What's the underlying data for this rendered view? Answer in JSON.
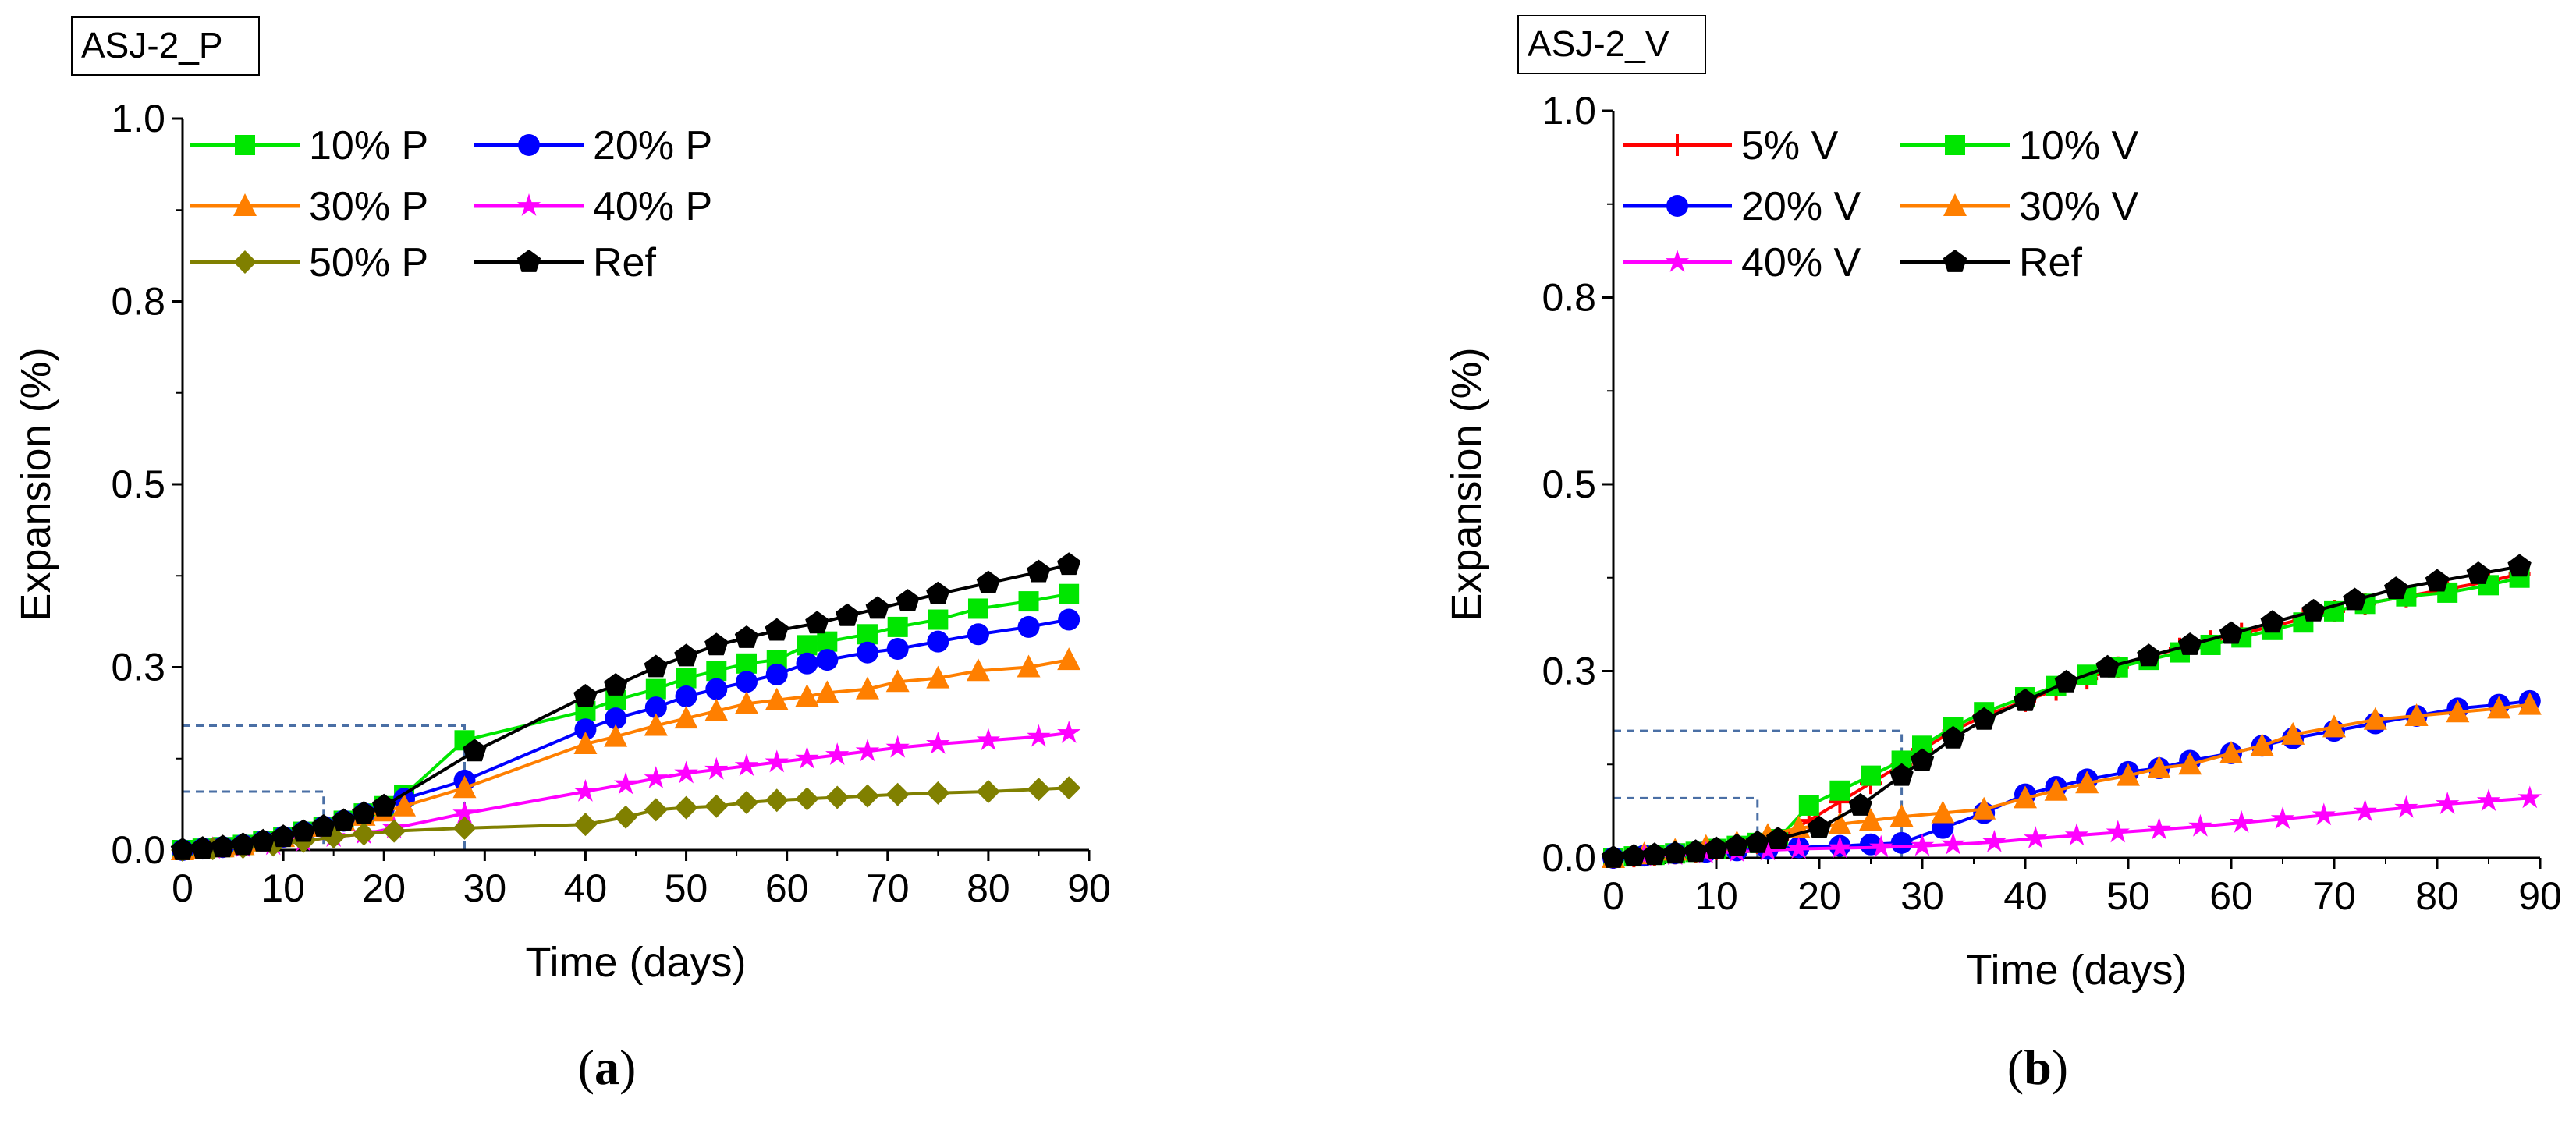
{
  "chart_data": [
    {
      "type": "line",
      "title": "ASJ-2_P",
      "caption": "(a)",
      "caption_letter": "a",
      "xlabel": "Time (days)",
      "ylabel": "Expansion (%)",
      "xlim": [
        0,
        90
      ],
      "ylim": [
        0,
        1.0
      ],
      "xticks": [
        0,
        10,
        20,
        30,
        40,
        50,
        60,
        70,
        80,
        90
      ],
      "yticks": [
        {
          "value": 0.0,
          "label": "0.0"
        },
        {
          "value": 0.25,
          "label": "0.3"
        },
        {
          "value": 0.5,
          "label": "0.5"
        },
        {
          "value": 0.75,
          "label": "0.8"
        },
        {
          "value": 1.0,
          "label": "1.0"
        }
      ],
      "inset_boxes": [
        {
          "x": [
            0,
            28
          ],
          "y": [
            0,
            0.17
          ]
        },
        {
          "x": [
            0,
            14
          ],
          "y": [
            0,
            0.08
          ]
        }
      ],
      "series": [
        {
          "name": "10% P",
          "color": "#00e600",
          "marker": "square",
          "x": [
            0,
            2,
            4,
            6,
            8,
            10,
            12,
            14,
            16,
            18,
            20,
            22,
            28,
            40,
            43,
            47,
            50,
            53,
            56,
            59,
            62,
            64,
            68,
            71,
            75,
            79,
            84,
            88
          ],
          "y": [
            0,
            0.002,
            0.004,
            0.007,
            0.012,
            0.018,
            0.025,
            0.032,
            0.04,
            0.05,
            0.06,
            0.075,
            0.15,
            0.19,
            0.205,
            0.22,
            0.235,
            0.245,
            0.255,
            0.26,
            0.28,
            0.285,
            0.295,
            0.305,
            0.315,
            0.33,
            0.34,
            0.35
          ]
        },
        {
          "name": "20% P",
          "color": "#0000ff",
          "marker": "circle",
          "x": [
            0,
            2,
            4,
            6,
            8,
            10,
            12,
            14,
            16,
            18,
            20,
            22,
            28,
            40,
            43,
            47,
            50,
            53,
            56,
            59,
            62,
            64,
            68,
            71,
            75,
            79,
            84,
            88
          ],
          "y": [
            0,
            0.002,
            0.004,
            0.007,
            0.012,
            0.018,
            0.025,
            0.032,
            0.04,
            0.05,
            0.058,
            0.07,
            0.095,
            0.165,
            0.18,
            0.195,
            0.21,
            0.22,
            0.23,
            0.24,
            0.255,
            0.26,
            0.27,
            0.275,
            0.285,
            0.295,
            0.305,
            0.315
          ]
        },
        {
          "name": "30% P",
          "color": "#ff7f00",
          "marker": "triangle",
          "x": [
            0,
            2,
            4,
            6,
            8,
            10,
            12,
            14,
            16,
            18,
            20,
            22,
            28,
            40,
            43,
            47,
            50,
            53,
            56,
            59,
            62,
            64,
            68,
            71,
            75,
            79,
            84,
            88
          ],
          "y": [
            0,
            0.002,
            0.004,
            0.007,
            0.012,
            0.018,
            0.025,
            0.032,
            0.04,
            0.047,
            0.053,
            0.06,
            0.085,
            0.145,
            0.155,
            0.17,
            0.18,
            0.19,
            0.2,
            0.205,
            0.21,
            0.215,
            0.22,
            0.23,
            0.235,
            0.245,
            0.25,
            0.26
          ]
        },
        {
          "name": "40% P",
          "color": "#ff00ff",
          "marker": "star",
          "x": [
            0,
            3,
            6,
            9,
            12,
            15,
            18,
            21,
            28,
            40,
            44,
            47,
            50,
            53,
            56,
            59,
            62,
            65,
            68,
            71,
            75,
            80,
            85,
            88
          ],
          "y": [
            0,
            0.002,
            0.004,
            0.007,
            0.012,
            0.018,
            0.022,
            0.03,
            0.05,
            0.08,
            0.09,
            0.098,
            0.105,
            0.11,
            0.115,
            0.12,
            0.125,
            0.13,
            0.135,
            0.14,
            0.145,
            0.15,
            0.155,
            0.16
          ]
        },
        {
          "name": "50% P",
          "color": "#808000",
          "marker": "diamond",
          "x": [
            0,
            3,
            6,
            9,
            12,
            15,
            18,
            21,
            28,
            40,
            44,
            47,
            50,
            53,
            56,
            59,
            62,
            65,
            68,
            71,
            75,
            80,
            85,
            88
          ],
          "y": [
            0,
            0.002,
            0.004,
            0.007,
            0.012,
            0.018,
            0.022,
            0.026,
            0.03,
            0.035,
            0.045,
            0.055,
            0.058,
            0.06,
            0.065,
            0.068,
            0.07,
            0.072,
            0.074,
            0.076,
            0.078,
            0.08,
            0.083,
            0.085
          ]
        },
        {
          "name": "Ref",
          "color": "#000000",
          "marker": "pentagon",
          "x": [
            0,
            2,
            4,
            6,
            8,
            10,
            12,
            14,
            16,
            18,
            20,
            29,
            40,
            43,
            47,
            50,
            53,
            56,
            59,
            63,
            66,
            69,
            72,
            75,
            80,
            85,
            88
          ],
          "y": [
            0,
            0.002,
            0.004,
            0.007,
            0.012,
            0.018,
            0.025,
            0.032,
            0.04,
            0.05,
            0.06,
            0.135,
            0.21,
            0.225,
            0.25,
            0.265,
            0.28,
            0.29,
            0.3,
            0.31,
            0.32,
            0.33,
            0.34,
            0.35,
            0.365,
            0.38,
            0.39
          ]
        }
      ]
    },
    {
      "type": "line",
      "title": "ASJ-2_V",
      "caption": "(b)",
      "caption_letter": "b",
      "xlabel": "Time (days)",
      "ylabel": "Expansion (%)",
      "xlim": [
        0,
        90
      ],
      "ylim": [
        0,
        1.0
      ],
      "xticks": [
        0,
        10,
        20,
        30,
        40,
        50,
        60,
        70,
        80,
        90
      ],
      "yticks": [
        {
          "value": 0.0,
          "label": "0.0"
        },
        {
          "value": 0.25,
          "label": "0.3"
        },
        {
          "value": 0.5,
          "label": "0.5"
        },
        {
          "value": 0.75,
          "label": "0.8"
        },
        {
          "value": 1.0,
          "label": "1.0"
        }
      ],
      "inset_boxes": [
        {
          "x": [
            0,
            28
          ],
          "y": [
            0,
            0.17
          ]
        },
        {
          "x": [
            0,
            14
          ],
          "y": [
            0,
            0.08
          ]
        }
      ],
      "series": [
        {
          "name": "5% V",
          "color": "#ff0000",
          "marker": "plus",
          "x": [
            0,
            2,
            4,
            6,
            8,
            10,
            12,
            14,
            16,
            19,
            22,
            25,
            28,
            30,
            33,
            36,
            40,
            43,
            46,
            49,
            52,
            55,
            58,
            61,
            64,
            67,
            70,
            73,
            77,
            81,
            85,
            88
          ],
          "y": [
            0,
            0.002,
            0.004,
            0.006,
            0.008,
            0.012,
            0.016,
            0.02,
            0.025,
            0.05,
            0.075,
            0.1,
            0.125,
            0.145,
            0.17,
            0.19,
            0.21,
            0.225,
            0.24,
            0.255,
            0.27,
            0.28,
            0.29,
            0.3,
            0.31,
            0.32,
            0.33,
            0.34,
            0.35,
            0.36,
            0.37,
            0.38
          ]
        },
        {
          "name": "10% V",
          "color": "#00e600",
          "marker": "square",
          "x": [
            0,
            2,
            4,
            6,
            8,
            10,
            12,
            14,
            16,
            19,
            22,
            25,
            28,
            30,
            33,
            36,
            40,
            43,
            46,
            49,
            52,
            55,
            58,
            61,
            64,
            67,
            70,
            73,
            77,
            81,
            85,
            88
          ],
          "y": [
            0,
            0.002,
            0.004,
            0.006,
            0.008,
            0.012,
            0.016,
            0.02,
            0.025,
            0.07,
            0.09,
            0.11,
            0.13,
            0.15,
            0.175,
            0.195,
            0.215,
            0.23,
            0.245,
            0.255,
            0.265,
            0.275,
            0.285,
            0.295,
            0.305,
            0.315,
            0.33,
            0.34,
            0.35,
            0.355,
            0.365,
            0.375
          ]
        },
        {
          "name": "20% V",
          "color": "#0000ff",
          "marker": "circle",
          "x": [
            0,
            3,
            6,
            9,
            12,
            15,
            18,
            22,
            25,
            28,
            32,
            36,
            40,
            43,
            46,
            50,
            53,
            56,
            60,
            63,
            66,
            70,
            74,
            78,
            82,
            86,
            89
          ],
          "y": [
            0,
            0.003,
            0.006,
            0.008,
            0.01,
            0.012,
            0.014,
            0.016,
            0.018,
            0.02,
            0.04,
            0.06,
            0.085,
            0.095,
            0.105,
            0.115,
            0.12,
            0.13,
            0.14,
            0.15,
            0.16,
            0.17,
            0.18,
            0.19,
            0.2,
            0.205,
            0.21
          ]
        },
        {
          "name": "30% V",
          "color": "#ff7f00",
          "marker": "triangle",
          "x": [
            0,
            3,
            6,
            9,
            12,
            15,
            18,
            22,
            25,
            28,
            32,
            36,
            40,
            43,
            46,
            50,
            53,
            56,
            60,
            63,
            66,
            70,
            74,
            78,
            82,
            86,
            89
          ],
          "y": [
            0,
            0.005,
            0.01,
            0.015,
            0.02,
            0.03,
            0.04,
            0.045,
            0.05,
            0.055,
            0.06,
            0.065,
            0.08,
            0.09,
            0.1,
            0.11,
            0.12,
            0.125,
            0.14,
            0.15,
            0.165,
            0.175,
            0.185,
            0.19,
            0.195,
            0.2,
            0.205
          ]
        },
        {
          "name": "40% V",
          "color": "#ff00ff",
          "marker": "star",
          "x": [
            0,
            3,
            6,
            9,
            12,
            15,
            18,
            22,
            26,
            30,
            33,
            37,
            41,
            45,
            49,
            53,
            57,
            61,
            65,
            69,
            73,
            77,
            81,
            85,
            89
          ],
          "y": [
            0,
            0.002,
            0.004,
            0.006,
            0.008,
            0.01,
            0.012,
            0.013,
            0.014,
            0.016,
            0.018,
            0.021,
            0.026,
            0.03,
            0.034,
            0.038,
            0.042,
            0.047,
            0.052,
            0.057,
            0.062,
            0.067,
            0.072,
            0.076,
            0.08
          ]
        },
        {
          "name": "Ref",
          "color": "#000000",
          "marker": "pentagon",
          "x": [
            0,
            2,
            4,
            6,
            8,
            10,
            12,
            14,
            16,
            20,
            24,
            28,
            30,
            33,
            36,
            40,
            44,
            48,
            52,
            56,
            60,
            64,
            68,
            72,
            76,
            80,
            84,
            88
          ],
          "y": [
            0,
            0.002,
            0.004,
            0.006,
            0.008,
            0.012,
            0.016,
            0.02,
            0.025,
            0.04,
            0.07,
            0.11,
            0.13,
            0.16,
            0.185,
            0.21,
            0.235,
            0.255,
            0.27,
            0.285,
            0.3,
            0.315,
            0.33,
            0.345,
            0.36,
            0.37,
            0.38,
            0.39
          ]
        }
      ]
    }
  ]
}
